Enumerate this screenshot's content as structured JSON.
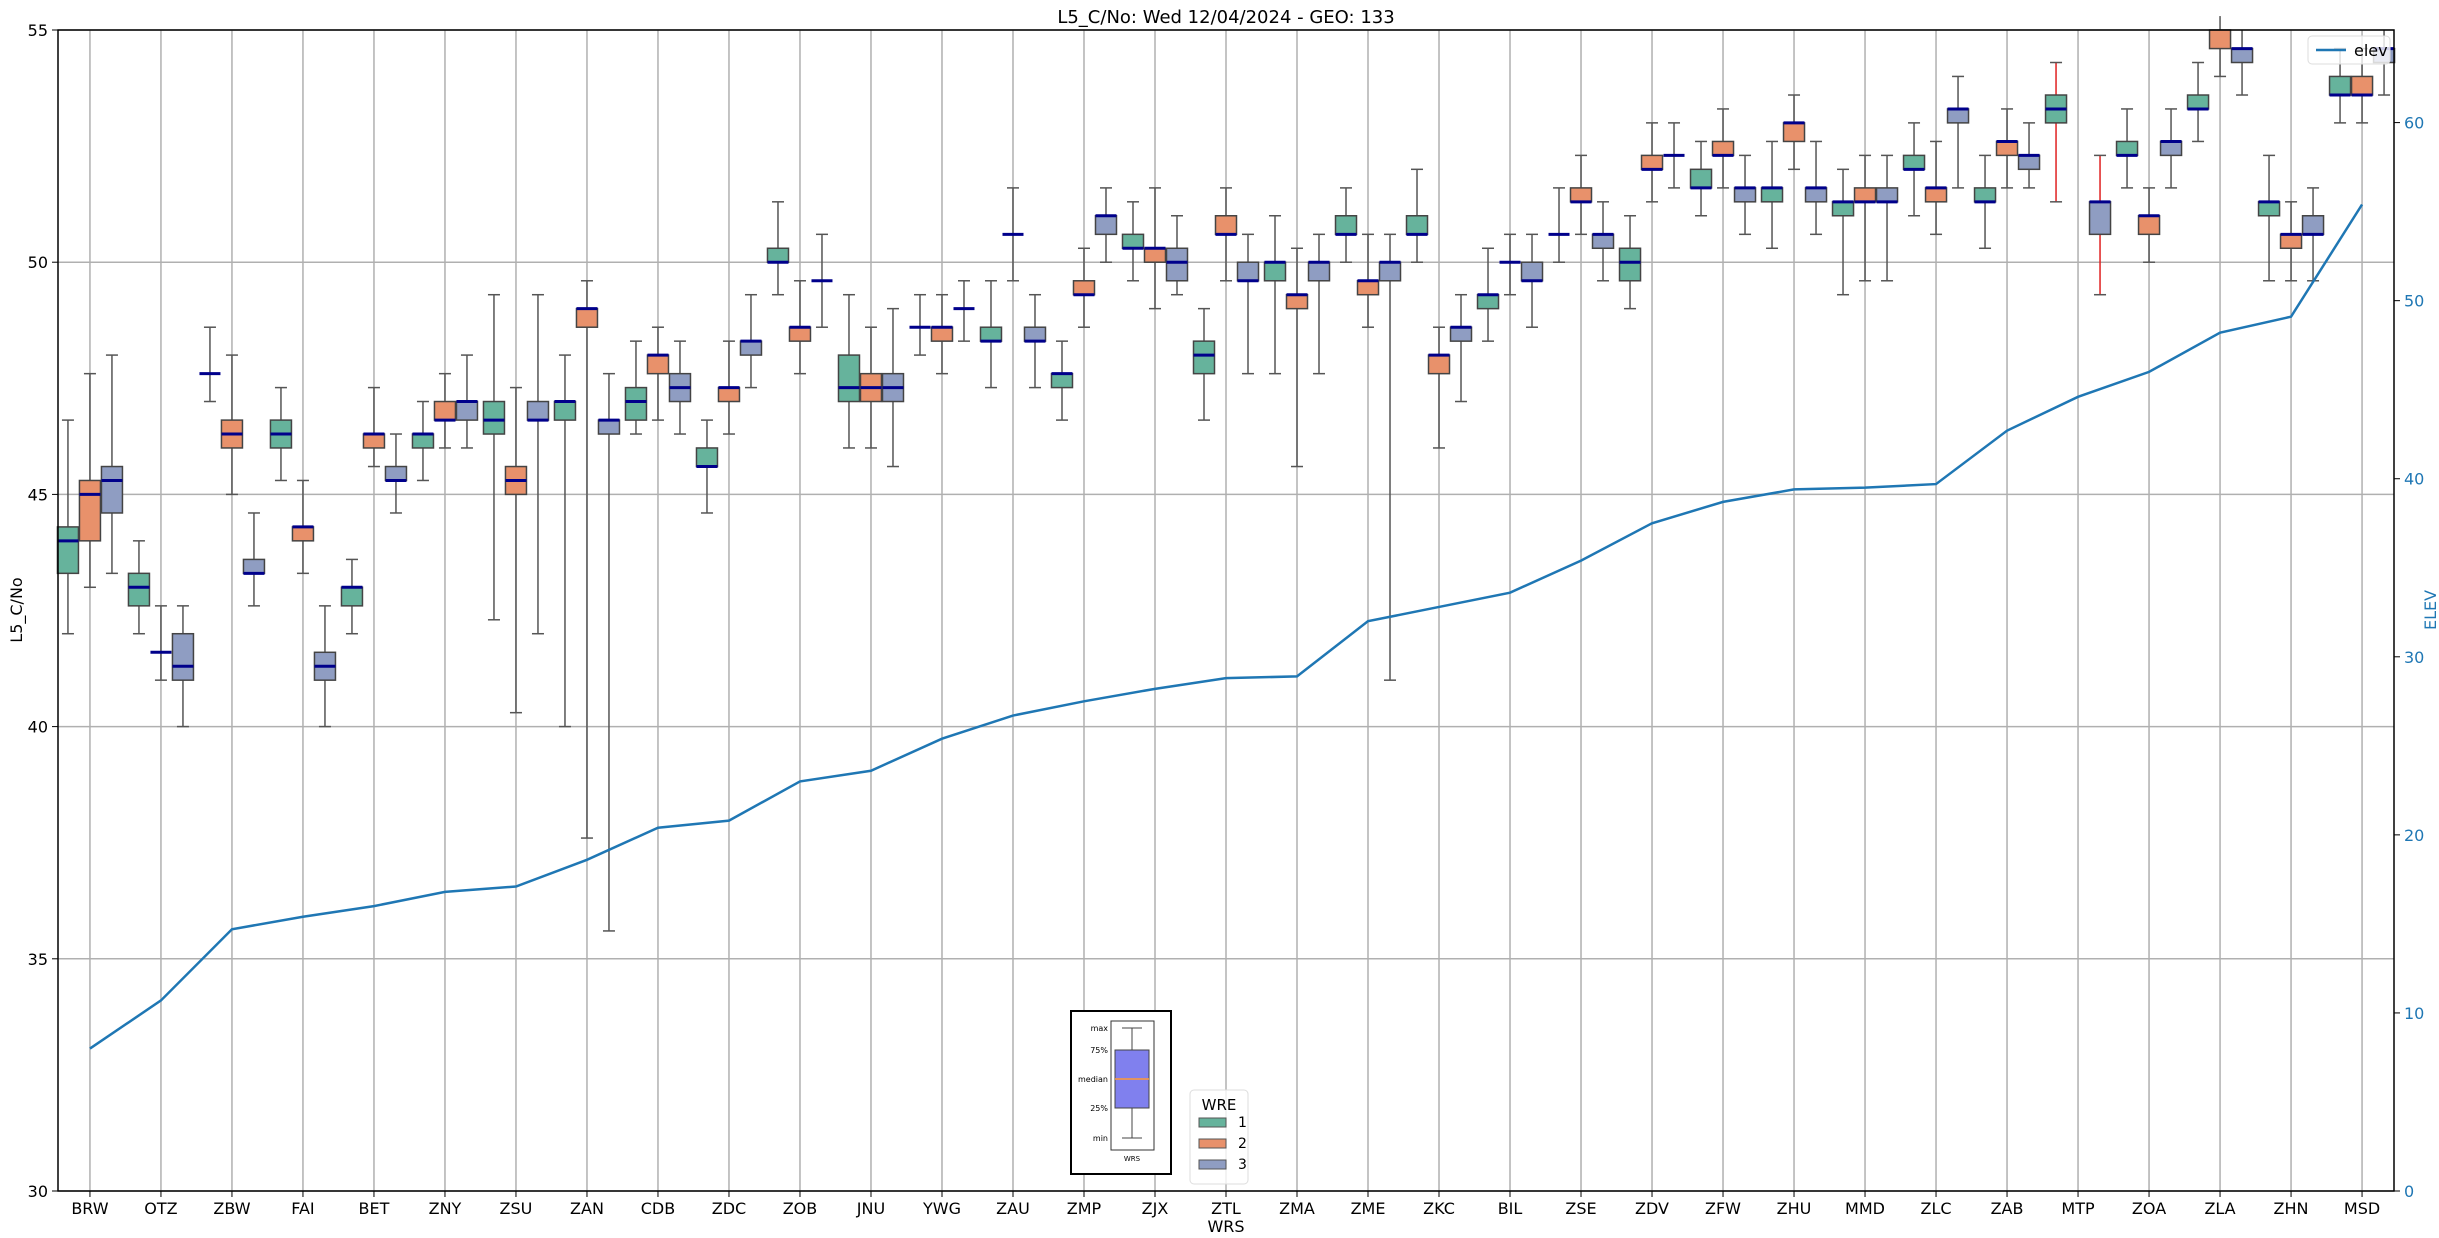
{
  "chart_data": {
    "type": "box",
    "title": "L5_C/No: Wed 12/04/2024 - GEO: 133",
    "xlabel": "WRS",
    "ylabel": "L5_C/No",
    "y2label": "ELEV",
    "ylim": [
      30,
      55
    ],
    "y2lim": [
      0,
      65.2
    ],
    "yticks": [
      30,
      35,
      40,
      45,
      50,
      55
    ],
    "y2ticks": [
      0,
      10,
      20,
      30,
      40,
      50,
      60
    ],
    "grid": true,
    "legend": {
      "title": "WRE",
      "placement": "bottom-center",
      "entries": [
        "1",
        "2",
        "3"
      ]
    },
    "line_legend": {
      "label": "elev",
      "placement": "top-right"
    },
    "colors": {
      "1": "#66b39c",
      "2": "#e8916b",
      "3": "#8f9dc2",
      "median": "#00008b",
      "elev": "#1f77b4",
      "whisker": "#555555",
      "whisker_alt": "#e02020"
    },
    "inset_legend": {
      "labels": [
        "max",
        "75%",
        "median",
        "25%",
        "min"
      ],
      "xlabel": "WRS",
      "box_color": "#8080ee",
      "median_color": "#ff9933"
    },
    "categories": [
      "BRW",
      "OTZ",
      "ZBW",
      "FAI",
      "BET",
      "ZNY",
      "ZSU",
      "ZAN",
      "CDB",
      "ZDC",
      "ZOB",
      "JNU",
      "YWG",
      "ZAU",
      "ZMP",
      "ZJX",
      "ZTL",
      "ZMA",
      "ZME",
      "ZKC",
      "BIL",
      "ZSE",
      "ZDV",
      "ZFW",
      "ZHU",
      "MMD",
      "ZLC",
      "ZAB",
      "MTP",
      "ZOA",
      "ZLA",
      "ZHN",
      "MSD"
    ],
    "elev": [
      8.0,
      10.7,
      14.7,
      15.4,
      16.0,
      16.8,
      17.1,
      18.6,
      20.4,
      20.8,
      23.0,
      23.6,
      25.4,
      26.7,
      27.5,
      28.2,
      28.8,
      28.9,
      32.0,
      32.8,
      33.6,
      35.4,
      37.5,
      38.7,
      39.4,
      39.5,
      39.7,
      42.7,
      44.6,
      46.0,
      48.2,
      49.1,
      55.4
    ],
    "boxes_format": [
      "min",
      "q1",
      "median",
      "q3",
      "max"
    ],
    "series": [
      {
        "name": "1",
        "values": [
          [
            42.0,
            43.3,
            44.0,
            44.3,
            46.6
          ],
          [
            42.0,
            42.6,
            43.0,
            43.3,
            44.0
          ],
          [
            47.0,
            47.6,
            47.6,
            47.6,
            48.6
          ],
          [
            45.3,
            46.0,
            46.3,
            46.6,
            47.3
          ],
          [
            42.0,
            42.6,
            43.0,
            43.0,
            43.6
          ],
          [
            45.3,
            46.0,
            46.3,
            46.3,
            47.0
          ],
          [
            42.3,
            46.3,
            46.6,
            47.0,
            49.3
          ],
          [
            40.0,
            46.6,
            47.0,
            47.0,
            48.0
          ],
          [
            46.3,
            46.6,
            47.0,
            47.3,
            48.3
          ],
          [
            44.6,
            45.6,
            45.6,
            46.0,
            46.6
          ],
          [
            49.3,
            50.0,
            50.0,
            50.3,
            51.3
          ],
          [
            46.0,
            47.0,
            47.3,
            48.0,
            49.3
          ],
          [
            48.0,
            48.6,
            48.6,
            48.6,
            49.3
          ],
          [
            47.3,
            48.3,
            48.3,
            48.6,
            49.6
          ],
          [
            46.6,
            47.3,
            47.6,
            47.6,
            48.3
          ],
          [
            49.6,
            50.3,
            50.3,
            50.6,
            51.3
          ],
          [
            46.6,
            47.6,
            48.0,
            48.3,
            49.0
          ],
          [
            47.6,
            49.6,
            50.0,
            50.0,
            51.0
          ],
          [
            50.0,
            50.6,
            50.6,
            51.0,
            51.6
          ],
          [
            50.0,
            50.6,
            50.6,
            51.0,
            52.0
          ],
          [
            48.3,
            49.0,
            49.3,
            49.3,
            50.3
          ],
          [
            50.0,
            50.6,
            50.6,
            50.6,
            51.6
          ],
          [
            49.0,
            49.6,
            50.0,
            50.3,
            51.0
          ],
          [
            51.0,
            51.6,
            51.6,
            52.0,
            52.6
          ],
          [
            50.3,
            51.3,
            51.6,
            51.6,
            52.6
          ],
          [
            49.3,
            51.0,
            51.3,
            51.3,
            52.0
          ],
          [
            51.0,
            52.0,
            52.0,
            52.3,
            53.0
          ],
          [
            50.3,
            51.3,
            51.3,
            51.6,
            52.3
          ],
          [
            51.3,
            53.0,
            53.3,
            53.6,
            54.3
          ],
          [
            51.6,
            52.3,
            52.3,
            52.6,
            53.3
          ],
          [
            52.6,
            53.3,
            53.3,
            53.6,
            54.3
          ],
          [
            49.6,
            51.0,
            51.3,
            51.3,
            52.3
          ],
          [
            53.0,
            53.6,
            53.6,
            54.0,
            54.6
          ]
        ]
      },
      {
        "name": "2",
        "values": [
          [
            43.0,
            44.0,
            45.0,
            45.3,
            47.6
          ],
          [
            41.0,
            41.6,
            41.6,
            41.6,
            42.6
          ],
          [
            45.0,
            46.0,
            46.3,
            46.6,
            48.0
          ],
          [
            43.3,
            44.0,
            44.3,
            44.3,
            45.3
          ],
          [
            45.6,
            46.0,
            46.3,
            46.3,
            47.3
          ],
          [
            46.0,
            46.6,
            46.6,
            47.0,
            47.6
          ],
          [
            40.3,
            45.0,
            45.3,
            45.6,
            47.3
          ],
          [
            37.6,
            48.6,
            49.0,
            49.0,
            49.6
          ],
          [
            46.6,
            47.6,
            48.0,
            48.0,
            48.6
          ],
          [
            46.3,
            47.0,
            47.3,
            47.3,
            48.3
          ],
          [
            47.6,
            48.3,
            48.6,
            48.6,
            49.6
          ],
          [
            46.0,
            47.0,
            47.3,
            47.6,
            48.6
          ],
          [
            47.6,
            48.3,
            48.6,
            48.6,
            49.3
          ],
          [
            49.6,
            50.6,
            50.6,
            50.6,
            51.6
          ],
          [
            48.6,
            49.3,
            49.3,
            49.6,
            50.3
          ],
          [
            49.0,
            50.0,
            50.3,
            50.3,
            51.6
          ],
          [
            49.6,
            50.6,
            50.6,
            51.0,
            51.6
          ],
          [
            45.6,
            49.0,
            49.3,
            49.3,
            50.3
          ],
          [
            48.6,
            49.3,
            49.6,
            49.6,
            50.6
          ],
          [
            46.0,
            47.6,
            48.0,
            48.0,
            48.6
          ],
          [
            49.3,
            50.0,
            50.0,
            50.0,
            50.6
          ],
          [
            50.6,
            51.3,
            51.3,
            51.6,
            52.3
          ],
          [
            51.3,
            52.0,
            52.0,
            52.3,
            53.0
          ],
          [
            51.6,
            52.3,
            52.3,
            52.6,
            53.3
          ],
          [
            52.0,
            52.6,
            53.0,
            53.0,
            53.6
          ],
          [
            49.6,
            51.3,
            51.3,
            51.6,
            52.3
          ],
          [
            50.6,
            51.3,
            51.6,
            51.6,
            52.6
          ],
          [
            51.6,
            52.3,
            52.6,
            52.6,
            53.3
          ],
          null,
          [
            50.0,
            50.6,
            51.0,
            51.0,
            51.6
          ],
          [
            54.0,
            54.6,
            55.2,
            55.3,
            55.5
          ],
          [
            49.6,
            50.3,
            50.6,
            50.6,
            51.3
          ],
          [
            53.0,
            53.6,
            53.6,
            54.0,
            54.6
          ]
        ]
      },
      {
        "name": "3",
        "values": [
          [
            43.3,
            44.6,
            45.3,
            45.6,
            48.0
          ],
          [
            40.0,
            41.0,
            41.3,
            42.0,
            42.6
          ],
          [
            42.6,
            43.3,
            43.3,
            43.6,
            44.6
          ],
          [
            40.0,
            41.0,
            41.3,
            41.6,
            42.6
          ],
          [
            44.6,
            45.3,
            45.3,
            45.6,
            46.3
          ],
          [
            46.0,
            46.6,
            47.0,
            47.0,
            48.0
          ],
          [
            42.0,
            46.6,
            46.6,
            47.0,
            49.3
          ],
          [
            35.6,
            46.3,
            46.6,
            46.6,
            47.6
          ],
          [
            46.3,
            47.0,
            47.3,
            47.6,
            48.3
          ],
          [
            47.3,
            48.0,
            48.3,
            48.3,
            49.3
          ],
          [
            48.6,
            49.6,
            49.6,
            49.6,
            50.6
          ],
          [
            45.6,
            47.0,
            47.3,
            47.6,
            49.0
          ],
          [
            48.3,
            49.0,
            49.0,
            49.0,
            49.6
          ],
          [
            47.3,
            48.3,
            48.3,
            48.6,
            49.3
          ],
          [
            50.0,
            50.6,
            51.0,
            51.0,
            51.6
          ],
          [
            49.3,
            49.6,
            50.0,
            50.3,
            51.0
          ],
          [
            47.6,
            49.6,
            49.6,
            50.0,
            50.6
          ],
          [
            47.6,
            49.6,
            50.0,
            50.0,
            50.6
          ],
          [
            41.0,
            49.6,
            50.0,
            50.0,
            50.6
          ],
          [
            47.0,
            48.3,
            48.6,
            48.6,
            49.3
          ],
          [
            48.6,
            49.6,
            49.6,
            50.0,
            50.6
          ],
          [
            49.6,
            50.3,
            50.6,
            50.6,
            51.3
          ],
          [
            51.6,
            52.3,
            52.3,
            52.3,
            53.0
          ],
          [
            50.6,
            51.3,
            51.6,
            51.6,
            52.3
          ],
          [
            50.6,
            51.3,
            51.6,
            51.6,
            52.6
          ],
          [
            49.6,
            51.3,
            51.3,
            51.6,
            52.3
          ],
          [
            51.6,
            53.0,
            53.3,
            53.3,
            54.0
          ],
          [
            51.6,
            52.0,
            52.3,
            52.3,
            53.0
          ],
          [
            49.3,
            50.6,
            51.3,
            51.3,
            52.3
          ],
          [
            51.6,
            52.3,
            52.6,
            52.6,
            53.3
          ],
          [
            53.6,
            54.3,
            54.6,
            54.6,
            55.5
          ],
          [
            49.6,
            50.6,
            50.6,
            51.0,
            51.6
          ],
          [
            53.6,
            54.3,
            54.6,
            54.6,
            55.5
          ]
        ]
      }
    ],
    "alt_whisker_categories": [
      "MTP"
    ]
  }
}
